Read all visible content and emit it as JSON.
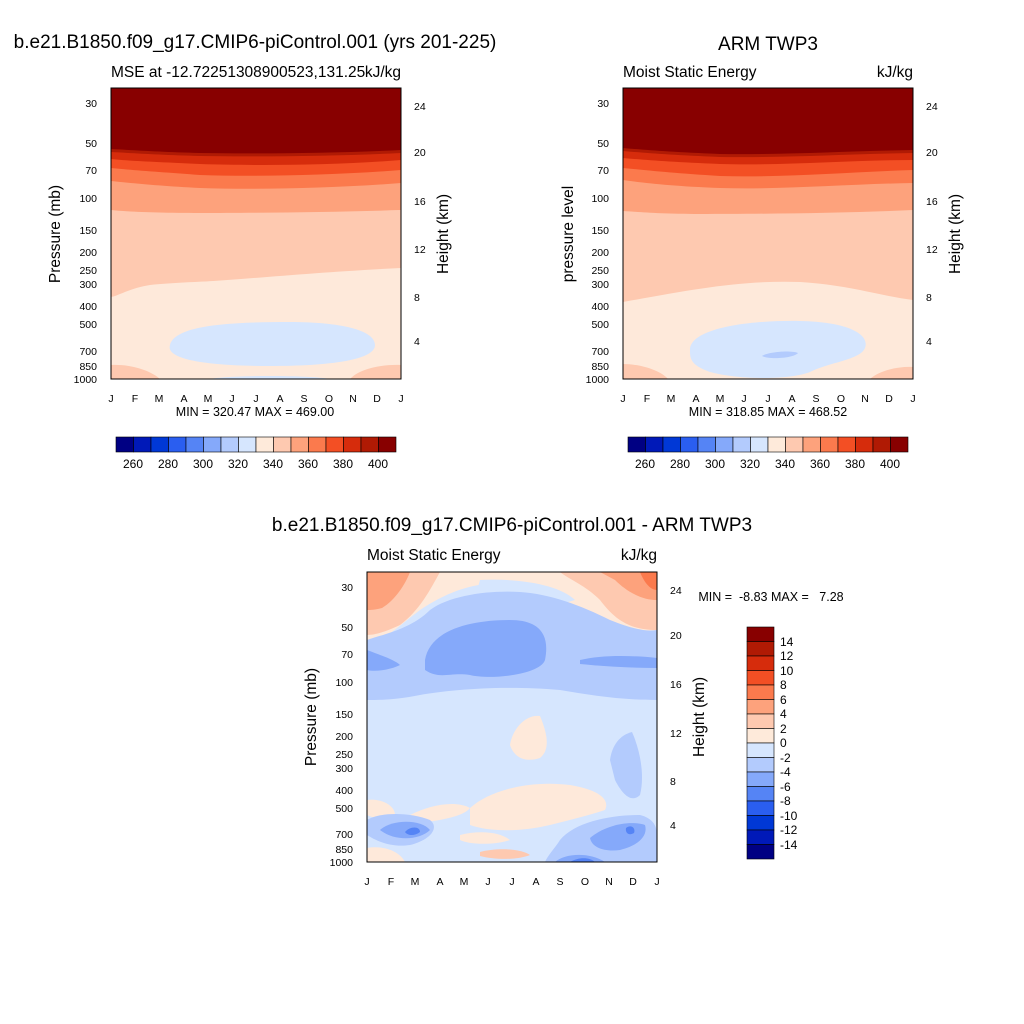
{
  "chart_data": [
    {
      "type": "contour",
      "title": "b.e21.B1850.f09_g17.CMIP6-piControl.001 (yrs 201-225)",
      "subtitle_left": "MSE at -12.72251308900523,131.25",
      "subtitle_right": "kJ/kg",
      "ylabel": "Pressure (mb)",
      "ylabel_right": "Height (km)",
      "x_ticks": [
        "J",
        "F",
        "M",
        "A",
        "M",
        "J",
        "J",
        "A",
        "S",
        "O",
        "N",
        "D",
        "J"
      ],
      "pressure_ticks": [
        30,
        50,
        70,
        100,
        150,
        200,
        250,
        300,
        400,
        500,
        700,
        850,
        1000
      ],
      "height_ticks": [
        24,
        20,
        16,
        12,
        8,
        4
      ],
      "stats": "MIN = 320.47 MAX = 469.00",
      "colorbar_labels": [
        260,
        280,
        300,
        320,
        340,
        360,
        380,
        400
      ]
    },
    {
      "type": "contour",
      "title": "ARM TWP3",
      "subtitle_left": "Moist Static Energy",
      "subtitle_right": "kJ/kg",
      "ylabel": "pressure level",
      "ylabel_right": "Height (km)",
      "x_ticks": [
        "J",
        "F",
        "M",
        "A",
        "M",
        "J",
        "J",
        "A",
        "S",
        "O",
        "N",
        "D",
        "J"
      ],
      "pressure_ticks": [
        30,
        50,
        70,
        100,
        150,
        200,
        250,
        300,
        400,
        500,
        700,
        850,
        1000
      ],
      "height_ticks": [
        24,
        20,
        16,
        12,
        8,
        4
      ],
      "stats": "MIN = 318.85 MAX = 468.52",
      "colorbar_labels": [
        260,
        280,
        300,
        320,
        340,
        360,
        380,
        400
      ]
    },
    {
      "type": "contour",
      "title": "b.e21.B1850.f09_g17.CMIP6-piControl.001 - ARM TWP3",
      "subtitle_left": "Moist Static Energy",
      "subtitle_right": "kJ/kg",
      "ylabel": "Pressure (mb)",
      "ylabel_right": "Height (km)",
      "x_ticks": [
        "J",
        "F",
        "M",
        "A",
        "M",
        "J",
        "J",
        "A",
        "S",
        "O",
        "N",
        "D",
        "J"
      ],
      "pressure_ticks": [
        30,
        50,
        70,
        100,
        150,
        200,
        250,
        300,
        400,
        500,
        700,
        850,
        1000
      ],
      "height_ticks": [
        24,
        20,
        16,
        12,
        8,
        4
      ],
      "stats": "MIN =  -8.83 MAX =   7.28",
      "colorbar_labels": [
        14,
        12,
        10,
        8,
        6,
        4,
        2,
        0,
        -2,
        -4,
        -6,
        -8,
        -10,
        -12,
        -14
      ]
    }
  ],
  "colors": {
    "abs_scale": [
      "#000083",
      "#0019b8",
      "#0038d6",
      "#2a5ef0",
      "#5584f5",
      "#85a9fa",
      "#b3cbfd",
      "#d6e6fe",
      "#feeada",
      "#fec9b0",
      "#fda27c",
      "#fb7a4d",
      "#f34f24",
      "#d62c0c",
      "#b01a04",
      "#880000"
    ],
    "diff_scale": [
      "#880000",
      "#b01a04",
      "#d62c0c",
      "#f34f24",
      "#fb7a4d",
      "#fda27c",
      "#fec9b0",
      "#feeada",
      "#d6e6fe",
      "#b3cbfd",
      "#85a9fa",
      "#5584f5",
      "#2a5ef0",
      "#0038d6",
      "#0019b8",
      "#000083"
    ]
  }
}
